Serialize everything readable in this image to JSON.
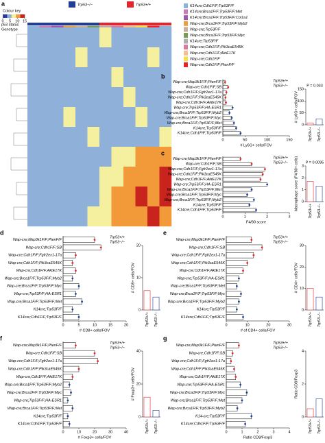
{
  "chart_data": [
    {
      "type": "heatmap",
      "panel": "a",
      "key_title": "Colour key",
      "key_ticks": [
        0,
        5,
        10,
        15
      ],
      "key_lim": [
        0,
        15
      ],
      "row_labels": [
        "p53 status",
        "Genotype"
      ],
      "status_legend": [
        {
          "name": "Trp53−/−",
          "color": "#1f3d99"
        },
        {
          "name": "Trp53+/+",
          "color": "#e8232a"
        }
      ],
      "models": [
        {
          "name": "K14cre;Cdh1F/F;Trp53F/F",
          "color": "#8ab4d8"
        },
        {
          "name": "K14cre;Brca1F/F;Trp53F/F;Met",
          "color": "#c97bb3"
        },
        {
          "name": "K14cre;Brca1F/F;Trp53F/F;Col1a1",
          "color": "#9c5aa8"
        },
        {
          "name": "Wap-cre;Brca1F/F;Trp53F/F;Myb2",
          "color": "#e6a23c"
        },
        {
          "name": "Wap-cre;Trp53F/F",
          "color": "#c7b299"
        },
        {
          "name": "Wap-cre;Brca1F/F;Trp53F/F;Myc",
          "color": "#7a9e5a"
        },
        {
          "name": "K14cre;Trp53F/F",
          "color": "#b0b0b0"
        },
        {
          "name": "Wap-cre;Cdh1F/F;Pik3caE545K",
          "color": "#d67aa0"
        },
        {
          "name": "Wap-cre;Cdh1F/F;AktE17K",
          "color": "#f0c090"
        },
        {
          "name": "Wap-cre;Cdh1F/F",
          "color": "#f4e04d"
        },
        {
          "name": "Wap-cre;Cdh1F/F;PtenF/F",
          "color": "#e8232a"
        }
      ],
      "values": [
        [
          3,
          4,
          2,
          5,
          3,
          4,
          6,
          5,
          4,
          3,
          4,
          5
        ],
        [
          4,
          3,
          5,
          4,
          6,
          5,
          4,
          3,
          5,
          4,
          6,
          4
        ],
        [
          2,
          3,
          4,
          3,
          5,
          4,
          3,
          6,
          4,
          5,
          4,
          3
        ],
        [
          5,
          4,
          3,
          4,
          3,
          5,
          4,
          4,
          6,
          5,
          5,
          4
        ],
        [
          3,
          5,
          4,
          6,
          4,
          3,
          5,
          4,
          3,
          6,
          4,
          5
        ],
        [
          4,
          3,
          5,
          3,
          4,
          6,
          4,
          5,
          4,
          3,
          5,
          6
        ],
        [
          3,
          4,
          4,
          5,
          3,
          4,
          5,
          6,
          8,
          10,
          12,
          11
        ],
        [
          4,
          3,
          5,
          4,
          5,
          3,
          6,
          9,
          11,
          13,
          12,
          14
        ],
        [
          2,
          4,
          3,
          4,
          4,
          5,
          7,
          10,
          12,
          14,
          13,
          15
        ],
        [
          3,
          3,
          4,
          5,
          4,
          6,
          8,
          11,
          13,
          12,
          14,
          13
        ]
      ]
    },
    {
      "type": "hbar",
      "panel": "b",
      "xlabel": "# Ly6G+ cells/FOV",
      "xlim": [
        0,
        150
      ],
      "xticks": [
        0,
        50,
        100,
        150
      ],
      "categories": [
        "Wap-cre;Map3k1F/F;PtenF/F",
        "Wap-cre;Cdh1F/F;SB",
        "Wap-cre;Cdh1F/F;Fgfr2ex1-17a",
        "Wap-cre;Cdh1F/F;Pik3caE545K",
        "Wap-cre;Cdh1F/F;AktE17K",
        "Wap-cre;Trp53F/F;HA-ESR1",
        "Wap-cre;Brca1F/F;Trp53F/F;Myb2",
        "Wap-cre;Brca1F/F;Trp53F/F;Myc",
        "Wap-cre;Brca1F/F;Trp53F/F;Met",
        "K14cre;Trp53F/F",
        "K14cre;Cdh1F/F;Trp53F/F"
      ],
      "series": [
        {
          "name": "Trp53+/+",
          "color": "#e8232a",
          "values": [
            5,
            12,
            8,
            6,
            7,
            null,
            null,
            null,
            null,
            null,
            null
          ]
        },
        {
          "name": "Trp53−/−",
          "color": "#1f3d99",
          "values": [
            null,
            null,
            null,
            null,
            null,
            22,
            15,
            20,
            25,
            30,
            40
          ]
        }
      ],
      "inset": {
        "ylabel": "# Ly6G+ cells/FOV",
        "values": [
          8,
          25
        ],
        "ylim": [
          0,
          150
        ],
        "yticks": [
          0,
          50,
          100,
          150
        ],
        "p": "P = 0.033"
      }
    },
    {
      "type": "hbar",
      "panel": "c",
      "xlabel": "F4/80 score",
      "xlim": [
        0,
        3
      ],
      "xticks": [
        0,
        1,
        2,
        3
      ],
      "categories": [
        "Wap-cre;Map3k1F/F;PtenF/F",
        "Wap-cre;Cdh1F/F;SB",
        "Wap-cre;Cdh1F/F;Fgfr2ex1-17a",
        "Wap-cre;Cdh1F/F;Pik3caE545K",
        "Wap-cre;Cdh1F/F;AktE17K",
        "Wap-cre;Trp53F/F;HA-ESR1",
        "Wap-cre;Brca1F/F;Trp53F/F;Met",
        "Wap-cre;Brca1F/F;Trp53F/F;Myc",
        "Wap-cre;Brca1F/F;Trp53F/F;Myb2",
        "K14cre;Trp53F/F",
        "K14cre;Cdh1F/F;Trp53F/F"
      ],
      "series": [
        {
          "name": "Trp53+/+",
          "color": "#e8232a",
          "values": [
            0.8,
            1.3,
            1.9,
            1.8,
            1.7,
            null,
            null,
            null,
            null,
            null,
            null
          ]
        },
        {
          "name": "Trp53−/−",
          "color": "#1f3d99",
          "values": [
            null,
            null,
            null,
            null,
            null,
            2,
            1.3,
            1.1,
            1.4,
            1.2,
            1.5
          ]
        }
      ],
      "inset": {
        "ylabel": "Macrophage score (F4/80+ cells)",
        "values": [
          1.7,
          1.3
        ],
        "ylim": [
          0,
          3
        ],
        "yticks": [
          0,
          1,
          2,
          3
        ],
        "p": "P = 0.0095"
      }
    },
    {
      "type": "hbar",
      "panel": "d",
      "xlabel": "# CD8+ cells/FOV",
      "xlim": [
        0,
        20
      ],
      "xticks": [
        0,
        5,
        10,
        15,
        20
      ],
      "categories": [
        "Wap-cre;Map3k1F/F;PtenF/F",
        "Wap-cre;Cdh1F/F;SB",
        "Wap-cre;Cdh1F/F;Fgfr2ex1-17a",
        "Wap-cre;Cdh1F/F;Pik3caE545K",
        "Wap-cre;Cdh1F/F;AktE17K",
        "Wap-cre;Brca1F/F;Trp53F/F;Myb2",
        "Wap-cre;Brca1F/F;Trp53F/F;Myc",
        "Wap-cre;Trp53F/F;HA-ESR1",
        "Wap-cre;Brca1F/F;Trp53F/F;Met",
        "K14cre;Trp53F/F",
        "K14cre;Cdh1F/F;Trp53F/F"
      ],
      "series": [
        {
          "name": "Trp53+/+",
          "color": "#e8232a",
          "values": [
            10,
            12,
            4,
            3,
            4,
            null,
            null,
            null,
            null,
            null,
            null
          ]
        },
        {
          "name": "Trp53−/−",
          "color": "#1f3d99",
          "values": [
            null,
            null,
            null,
            null,
            null,
            3,
            5,
            4,
            6,
            3,
            5
          ]
        }
      ],
      "inset": {
        "ylabel": "# CD8+ cells/FOV",
        "values": [
          6,
          4
        ],
        "ylim": [
          0,
          20
        ],
        "yticks": [
          0,
          10,
          20
        ]
      }
    },
    {
      "type": "hbar",
      "panel": "e",
      "xlabel": "# of CD4+ cells/FOV",
      "xlim": [
        0,
        30
      ],
      "xticks": [
        0,
        10,
        20,
        30
      ],
      "categories": [
        "Wap-cre;Map3k1F/F;PtenF/F",
        "Wap-cre;Cdh1F/F;SB",
        "Wap-cre;Cdh1F/F;Fgfr2ex1-17a",
        "Wap-cre;Cdh1F/F;Pik3caE545K",
        "Wap-cre;Cdh1F/F;AktE17K",
        "Wap-cre;Trp53F/F;HA-ESR1",
        "Wap-cre;Brca1F/F;Trp53F/F;Met",
        "Wap-cre;Brca1F/F;Trp53F/F;Myc",
        "Wap-cre;Brca1F/F;Trp53F/F;Myb2",
        "K14cre;Trp53F/F",
        "K14cre;Cdh1F/F;Trp53F/F"
      ],
      "series": [
        {
          "name": "Trp53+/+",
          "color": "#e8232a",
          "values": [
            12,
            17,
            13,
            10,
            8,
            null,
            null,
            null,
            null,
            null,
            null
          ]
        },
        {
          "name": "Trp53−/−",
          "color": "#1f3d99",
          "values": [
            null,
            null,
            null,
            null,
            null,
            6,
            5,
            7,
            6,
            5,
            8
          ]
        }
      ],
      "inset": {
        "ylabel": "# CD4+ cells/FOV",
        "values": [
          10,
          6
        ],
        "ylim": [
          0,
          30
        ],
        "yticks": [
          0,
          10,
          20,
          30
        ]
      }
    },
    {
      "type": "hbar",
      "panel": "f",
      "xlabel": "# Foxp3+ cells/FOV",
      "xlim": [
        0,
        40
      ],
      "xticks": [
        0,
        10,
        20,
        30,
        40
      ],
      "categories": [
        "Wap-cre;Map3k1F/F;PtenF/F",
        "Wap-cre;Cdh1F/F;SB",
        "Wap-cre;Cdh1F/F;Fgfr2ex1-17a",
        "Wap-cre;Cdh1F/F;Pik3caE545K",
        "Wap-cre;Cdh1F/F;AktE17K",
        "Wap-cre;Brca1F/F;Trp53F/F;Myb2",
        "Wap-cre;Brca1F/F;Trp53F/F;Myc",
        "Wap-cre;Trp53F/F;HA-ESR1",
        "Wap-cre;Brca1F/F;Trp53F/F;Met",
        "K14cre;Trp53F/F",
        "K14cre;Cdh1F/F;Trp53F/F"
      ],
      "series": [
        {
          "name": "Trp53+/+",
          "color": "#e8232a",
          "values": [
            8,
            20,
            22,
            10,
            6,
            null,
            null,
            null,
            null,
            null,
            null
          ]
        },
        {
          "name": "Trp53−/−",
          "color": "#1f3d99",
          "values": [
            null,
            null,
            null,
            null,
            null,
            4,
            5,
            3,
            6,
            3,
            4
          ]
        }
      ],
      "inset": {
        "ylabel": "# Foxp3+ cells/FOV",
        "values": [
          12,
          4
        ],
        "ylim": [
          0,
          40
        ],
        "yticks": [
          0,
          20,
          40
        ]
      }
    },
    {
      "type": "hbar",
      "panel": "g",
      "xlabel": "Ratio CD8/Foxp3",
      "xlim": [
        0,
        4
      ],
      "xticks": [
        0,
        1,
        2,
        3,
        4
      ],
      "categories": [
        "Wap-cre;Map3k1F/F;PtenF/F",
        "Wap-cre;Cdh1F/F;SB",
        "Wap-cre;Cdh1F/F;Fgfr2ex1-17a",
        "Wap-cre;Cdh1F/F;Pik3caE545K",
        "Wap-cre;Cdh1F/F;AktE17K",
        "Wap-cre;Trp53F/F;HA-ESR1",
        "Wap-cre;Brca1F/F;Trp53F/F;Myc",
        "Wap-cre;Brca1F/F;Trp53F/F;Met",
        "Wap-cre;Brca1F/F;Trp53F/F;Myb2",
        "K14-cre;Trp53F/F",
        "K14cre;Cdh1F/F;Trp53F/F"
      ],
      "series": [
        {
          "name": "Trp53+/+",
          "color": "#e8232a",
          "values": [
            0.8,
            0.4,
            0.3,
            0.5,
            0.6,
            null,
            null,
            null,
            null,
            null,
            null
          ]
        },
        {
          "name": "Trp53−/−",
          "color": "#1f3d99",
          "values": [
            null,
            null,
            null,
            null,
            null,
            0.9,
            1.3,
            1,
            0.7,
            1.6,
            1.2
          ]
        }
      ],
      "inset": {
        "ylabel": "Ratio CD8/Foxp3",
        "values": [
          0.5,
          1.1
        ],
        "ylim": [
          0,
          4
        ],
        "yticks": [
          0,
          2,
          4
        ]
      }
    }
  ]
}
